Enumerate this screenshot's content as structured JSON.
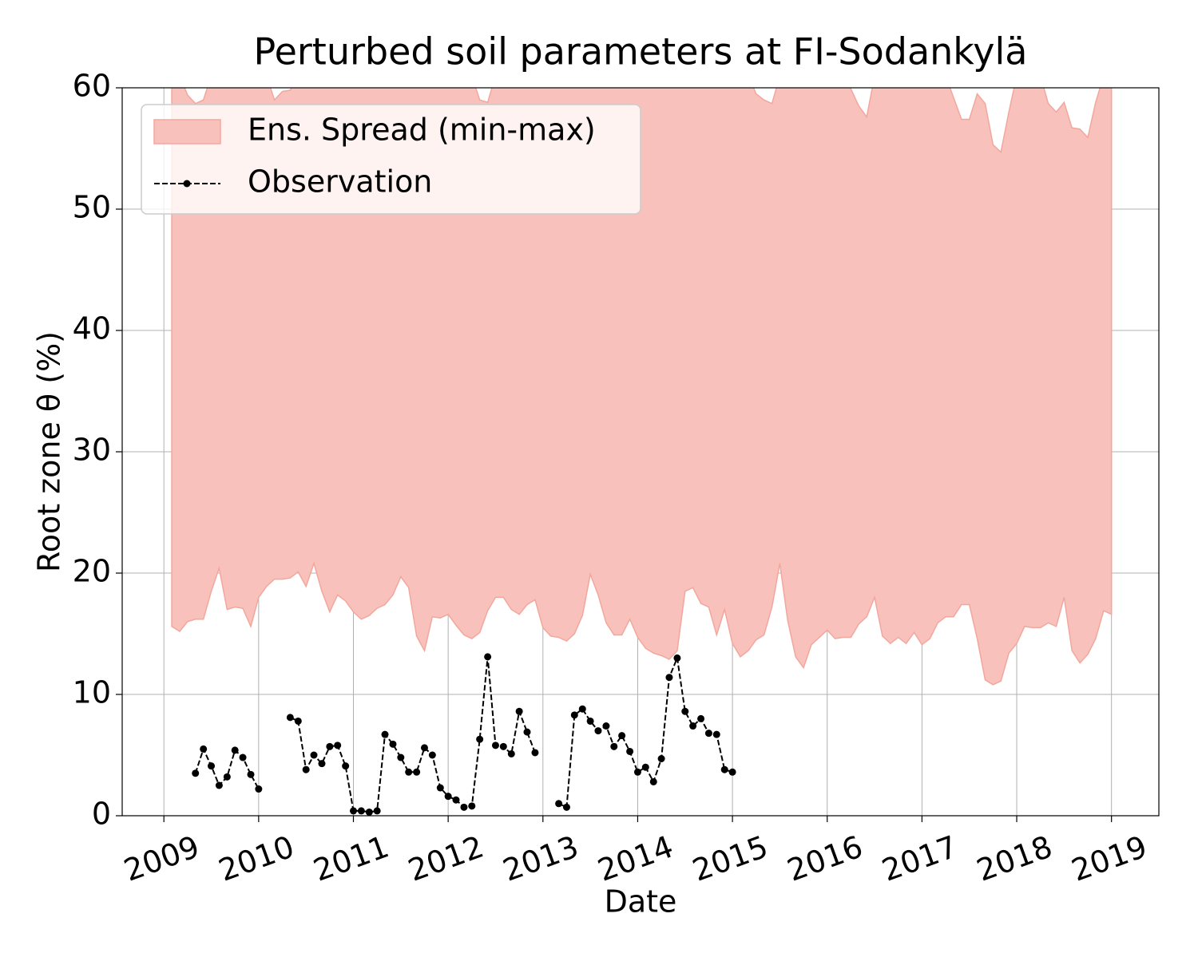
{
  "chart_data": {
    "type": "band-line",
    "title": "Perturbed soil parameters at FI-Sodankylä",
    "xlabel": "Date",
    "ylabel": "Root zone θ  (%)",
    "xlim": [
      2008.56,
      2019.5
    ],
    "ylim": [
      0,
      60
    ],
    "xticks": [
      2009,
      2010,
      2011,
      2012,
      2013,
      2014,
      2015,
      2016,
      2017,
      2018,
      2019
    ],
    "yticks": [
      0,
      10,
      20,
      30,
      40,
      50,
      60
    ],
    "grid": true,
    "legend_loc": "upper left",
    "x": [
      2009.083,
      2009.167,
      2009.25,
      2009.333,
      2009.417,
      2009.5,
      2009.583,
      2009.667,
      2009.75,
      2009.833,
      2009.917,
      2010.0,
      2010.083,
      2010.167,
      2010.25,
      2010.333,
      2010.417,
      2010.5,
      2010.583,
      2010.667,
      2010.75,
      2010.833,
      2010.917,
      2011.0,
      2011.083,
      2011.167,
      2011.25,
      2011.333,
      2011.417,
      2011.5,
      2011.583,
      2011.667,
      2011.75,
      2011.833,
      2011.917,
      2012.0,
      2012.083,
      2012.167,
      2012.25,
      2012.333,
      2012.417,
      2012.5,
      2012.583,
      2012.667,
      2012.75,
      2012.833,
      2012.917,
      2013.0,
      2013.083,
      2013.167,
      2013.25,
      2013.333,
      2013.417,
      2013.5,
      2013.583,
      2013.667,
      2013.75,
      2013.833,
      2013.917,
      2014.0,
      2014.083,
      2014.167,
      2014.25,
      2014.333,
      2014.417,
      2014.5,
      2014.583,
      2014.667,
      2014.75,
      2014.833,
      2014.917,
      2015.0,
      2015.083,
      2015.167,
      2015.25,
      2015.333,
      2015.417,
      2015.5,
      2015.583,
      2015.667,
      2015.75,
      2015.833,
      2015.917,
      2016.0,
      2016.083,
      2016.167,
      2016.25,
      2016.333,
      2016.417,
      2016.5,
      2016.583,
      2016.667,
      2016.75,
      2016.833,
      2016.917,
      2017.0,
      2017.083,
      2017.167,
      2017.25,
      2017.333,
      2017.417,
      2017.5,
      2017.583,
      2017.667,
      2017.75,
      2017.833,
      2017.917,
      2018.0,
      2018.083,
      2018.167,
      2018.25,
      2018.333,
      2018.417,
      2018.5,
      2018.583,
      2018.667,
      2018.75,
      2018.833,
      2018.917,
      2019.0
    ],
    "series": [
      {
        "name": "Ens. Spread (min-max)",
        "color": "#f8c1bb",
        "edge_color": "#f2a79d",
        "low": [
          15.6,
          15.2,
          16.0,
          16.2,
          16.2,
          18.5,
          20.4,
          17.0,
          17.2,
          17.1,
          15.6,
          18.0,
          18.9,
          19.5,
          19.5,
          19.6,
          20.1,
          18.9,
          20.8,
          18.5,
          16.8,
          18.2,
          17.7,
          16.8,
          16.2,
          16.5,
          17.1,
          17.4,
          18.2,
          19.7,
          18.8,
          14.8,
          13.6,
          16.4,
          16.3,
          16.6,
          15.7,
          14.9,
          14.6,
          15.1,
          16.9,
          18.0,
          18.0,
          17.0,
          16.6,
          17.4,
          17.8,
          15.5,
          14.8,
          14.7,
          14.4,
          15.0,
          16.5,
          19.9,
          18.2,
          15.9,
          14.9,
          14.9,
          16.2,
          14.7,
          13.8,
          13.4,
          13.2,
          12.9,
          13.6,
          18.5,
          18.8,
          17.5,
          17.2,
          14.9,
          17.0,
          14.2,
          13.1,
          13.6,
          14.5,
          14.9,
          17.2,
          20.8,
          16.1,
          13.1,
          12.2,
          14.1,
          14.7,
          15.3,
          14.6,
          14.7,
          14.7,
          15.8,
          16.4,
          18.0,
          14.8,
          14.2,
          14.7,
          14.2,
          15.1,
          14.1,
          14.6,
          15.9,
          16.4,
          16.4,
          17.4,
          17.4,
          14.6,
          11.2,
          10.8,
          11.1,
          13.4,
          14.2,
          15.6,
          15.5,
          15.5,
          15.9,
          15.6,
          18.0,
          13.6,
          12.6,
          13.3,
          14.6,
          16.9,
          16.6
        ],
        "high": [
          61,
          61,
          59.4,
          58.7,
          59.0,
          61,
          61,
          61,
          61,
          61,
          61,
          61,
          61,
          59.0,
          59.7,
          59.8,
          61,
          61,
          61,
          61,
          61,
          61,
          61,
          61,
          61,
          61,
          61,
          61,
          61,
          61,
          61,
          61,
          61,
          61,
          61,
          61,
          61,
          61,
          61,
          59.0,
          58.8,
          61,
          61,
          61,
          61,
          61,
          61,
          61,
          61,
          61,
          61,
          61,
          61,
          61,
          61,
          61,
          61,
          61,
          61,
          61,
          61,
          61,
          61,
          61,
          61,
          61,
          61,
          61,
          61,
          61,
          61,
          61,
          61,
          61,
          59.5,
          59.0,
          58.7,
          61,
          61,
          61,
          61,
          61,
          61,
          61,
          61,
          61,
          59.9,
          58.5,
          57.6,
          61,
          61,
          61,
          61,
          61,
          61,
          61,
          61,
          61,
          61,
          59.2,
          57.4,
          57.4,
          59.5,
          58.7,
          55.3,
          54.7,
          58.0,
          61,
          61,
          61,
          61,
          58.7,
          58.0,
          58.8,
          56.7,
          56.6,
          55.9,
          58.8,
          61,
          61
        ]
      },
      {
        "name": "Observation",
        "color": "#000000",
        "x": [
          2009.333,
          2009.417,
          2009.5,
          2009.583,
          2009.667,
          2009.75,
          2009.833,
          2009.917,
          2010.0,
          2010.167,
          2010.333,
          2010.417,
          2010.5,
          2010.583,
          2010.667,
          2010.75,
          2010.833,
          2010.917,
          2011.0,
          2011.083,
          2011.167,
          2011.25,
          2011.333,
          2011.417,
          2011.5,
          2011.583,
          2011.667,
          2011.75,
          2011.833,
          2011.917,
          2012.0,
          2012.083,
          2012.167,
          2012.25,
          2012.333,
          2012.417,
          2012.5,
          2012.583,
          2012.667,
          2012.75,
          2012.833,
          2012.917,
          2013.0,
          2013.167,
          2013.25,
          2013.333,
          2013.417,
          2013.5,
          2013.583,
          2013.667,
          2013.75,
          2013.833,
          2013.917,
          2014.0,
          2014.083,
          2014.167,
          2014.25,
          2014.333,
          2014.417,
          2014.5,
          2014.583,
          2014.667,
          2014.75,
          2014.833,
          2014.917,
          2015.0
        ],
        "values": [
          3.5,
          5.5,
          4.1,
          2.5,
          3.2,
          5.4,
          4.8,
          3.4,
          2.2,
          null,
          8.1,
          7.8,
          3.8,
          5.0,
          4.3,
          5.7,
          5.8,
          4.1,
          0.4,
          0.4,
          0.3,
          0.4,
          6.7,
          5.9,
          4.8,
          3.6,
          3.6,
          5.6,
          5.0,
          2.3,
          1.6,
          1.3,
          0.7,
          0.8,
          6.3,
          13.1,
          5.8,
          5.7,
          5.1,
          8.6,
          6.9,
          5.2,
          null,
          1.0,
          0.7,
          8.3,
          8.8,
          7.8,
          7.0,
          7.4,
          5.7,
          6.6,
          5.3,
          3.6,
          4.0,
          2.8,
          4.7,
          11.4,
          13.0,
          8.6,
          7.4,
          8.0,
          6.8,
          6.7,
          3.8,
          3.6
        ]
      }
    ]
  }
}
